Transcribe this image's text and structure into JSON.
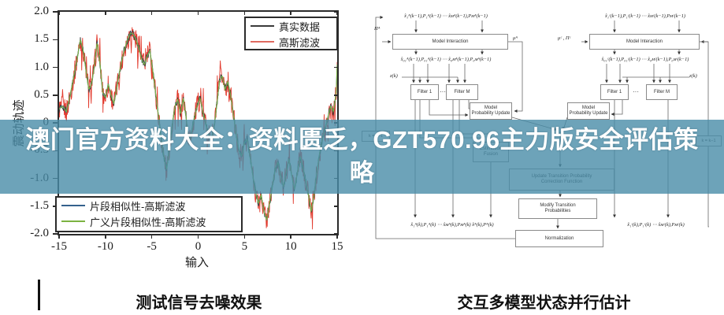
{
  "banner": {
    "line1": "澳门官方资料大全：资料匮乏，GZT570.96主力版安全评估策",
    "line2": "略",
    "bg_color": "rgba(72,140,168,0.80)",
    "text_color": "#ffffff"
  },
  "captions": {
    "left": "测试信号去噪效果",
    "right": "交互多模型状态并行估计"
  },
  "chart_data": {
    "type": "line",
    "title": "",
    "xlabel": "输入",
    "ylabel": "震动轨迹",
    "xlim": [
      -15,
      15
    ],
    "ylim": [
      -2,
      2
    ],
    "grid": false,
    "legend_top_position": "upper right",
    "legend_bottom_position": "lower left",
    "xticks": [
      -15,
      -10,
      -5,
      0,
      5,
      10,
      15
    ],
    "xtick_labels": [
      "-15",
      "-10",
      "-5",
      "0",
      "5",
      "10",
      "15"
    ],
    "ytick_values": [
      2,
      1.5,
      1,
      0.5,
      0,
      -0.5,
      -1,
      -1.5,
      -2
    ],
    "ytick_labels": [
      "2.0",
      "1.5",
      "1.0",
      "0.5",
      "0",
      "-0.5",
      "-1.0",
      "-1.5",
      "-2.0"
    ],
    "series": [
      {
        "name": "真实数据",
        "color": "#3a3a3a",
        "noise": 0.07,
        "width": 0.9
      },
      {
        "name": "高斯滤波",
        "color": "#e23b2e",
        "noise": 0.2,
        "width": 0.9
      },
      {
        "name": "片段相似性-高斯滤波",
        "color": "#34618d",
        "noise": 0.02,
        "width": 1.1
      },
      {
        "name": "广义片段相似性-高斯滤波",
        "color": "#7cb342",
        "noise": 0.0,
        "width": 1.1
      }
    ],
    "base_x": [
      -15,
      -14.6,
      -14.2,
      -13.8,
      -13.4,
      -13.0,
      -12.7,
      -12.4,
      -12.1,
      -11.8,
      -11.5,
      -11.2,
      -10.9,
      -10.6,
      -10.3,
      -10.0,
      -9.7,
      -9.4,
      -9.1,
      -8.8,
      -8.5,
      -8.2,
      -7.9,
      -7.6,
      -7.3,
      -7.0,
      -6.7,
      -6.4,
      -6.1,
      -5.8,
      -5.5,
      -5.2,
      -4.9,
      -4.6,
      -4.3,
      -4.0,
      -3.7,
      -3.4,
      -3.1,
      -2.8,
      -2.5,
      -2.2,
      -1.9,
      -1.6,
      -1.3,
      -1.0,
      -0.7,
      -0.4,
      -0.1,
      0.2,
      0.5,
      0.8,
      1.1,
      1.4,
      1.7,
      2.0,
      2.3,
      2.6,
      2.9,
      3.2,
      3.5,
      3.8,
      4.1,
      4.4,
      4.7,
      5.0,
      5.3,
      5.6,
      5.9,
      6.2,
      6.5,
      6.8,
      7.1,
      7.4,
      7.7,
      8.0,
      8.3,
      8.6,
      8.9,
      9.2,
      9.5,
      9.8,
      10.1,
      10.4,
      10.7,
      11.0,
      11.3,
      11.6,
      11.9,
      12.2,
      12.5,
      12.8,
      13.1,
      13.4,
      13.7,
      14.0,
      14.3,
      14.6,
      14.9,
      15.0
    ],
    "base_y": [
      0.25,
      0.3,
      0.2,
      0.5,
      0.85,
      1.2,
      1.5,
      1.3,
      0.95,
      0.6,
      0.7,
      1.0,
      1.45,
      1.1,
      0.55,
      0.45,
      0.7,
      0.5,
      0.35,
      0.6,
      0.9,
      1.15,
      1.35,
      1.5,
      1.62,
      1.6,
      1.5,
      1.35,
      1.15,
      1.05,
      1.2,
      1.3,
      0.95,
      0.55,
      0.15,
      -0.25,
      -0.6,
      -0.85,
      -0.45,
      -0.05,
      0.3,
      0.42,
      0.15,
      0.45,
      0.1,
      -0.35,
      -0.15,
      0.1,
      0.3,
      0.45,
      0.2,
      0.0,
      -0.2,
      -0.3,
      -0.1,
      0.3,
      0.75,
      0.85,
      0.6,
      0.75,
      0.5,
      0.15,
      -0.2,
      -0.5,
      -0.6,
      -0.35,
      -0.3,
      -0.6,
      -0.95,
      -1.25,
      -1.45,
      -1.3,
      -1.6,
      -1.75,
      -1.45,
      -1.15,
      -0.85,
      -0.7,
      -0.95,
      -1.15,
      -0.9,
      -0.65,
      -0.95,
      -1.2,
      -0.9,
      -0.6,
      -0.8,
      -1.05,
      -1.3,
      -1.6,
      -1.3,
      -0.9,
      -0.55,
      -0.3,
      -0.1,
      0.1,
      0.3,
      0.2,
      0.55,
      1.05
    ]
  },
  "legend_top": {
    "item1": "真实数据",
    "item2": "高斯滤波"
  },
  "legend_bottom": {
    "item1": "片段相似性-高斯滤波",
    "item2": "广义片段相似性-高斯滤波"
  },
  "diagram": {
    "model_interaction": "Model Interaction",
    "filter1": "Filter 1",
    "filterM": "Filter M",
    "dots": "···",
    "mpu_line1": "Model",
    "mpu_line2": "Probability Update",
    "fusion_line1": "Estimation",
    "fusion_line2": "Fusion",
    "utp_line1": "Update Transition Probability",
    "utp_line2": "Correction Function",
    "mtp_line1": "Modify Transition",
    "mtp_line2": "Probabilities",
    "normalization": "Normalization",
    "pi_a": "Πᴬ",
    "mu_a": "μᴬ",
    "mu_pi_c": "μᶜ , Πᶜ",
    "zk": "z(k)",
    "delay": "k = k−1",
    "f_a_top": "x̂₁ᴬ(k−1),P₁ᴬ(k−1)  ⋯  x̂ᴍᴬ(k−1),Pᴍᴬ(k−1)",
    "f_a_mid": "x̂₀₁ᴬ(k−1),P₀₁ᴬ(k−1)  ⋯  x̂₀ᴍᴬ(k−1),P₀ᴍᴬ(k−1)",
    "f_a_out": "x̂₁ᴬ(k),P₁ᴬ(k) ⋯ x̂ᴍᴬ(k),Pᴍᴬ(k)  x̂ᴬ(k),Pᴬ(k)",
    "f_c_top": "x̂₁ᶜ(k−1),P₁ᶜ(k−1)  ⋯  x̂ᴍᶜ(k−1),Pᴍᶜ(k−1)",
    "f_c_mid": "x̂₀₁ᶜ(k−1),P₀₁ᶜ(k−1)  ⋯  x̂₀ᴍᶜ(k−1),P₀ᴍᶜ(k−1)",
    "f_c_out": "x̂₁ᶜ(k),P₁ᶜ(k) ⋯ x̂ᴍᶜ(k),Pᴍᶜ(k)"
  }
}
